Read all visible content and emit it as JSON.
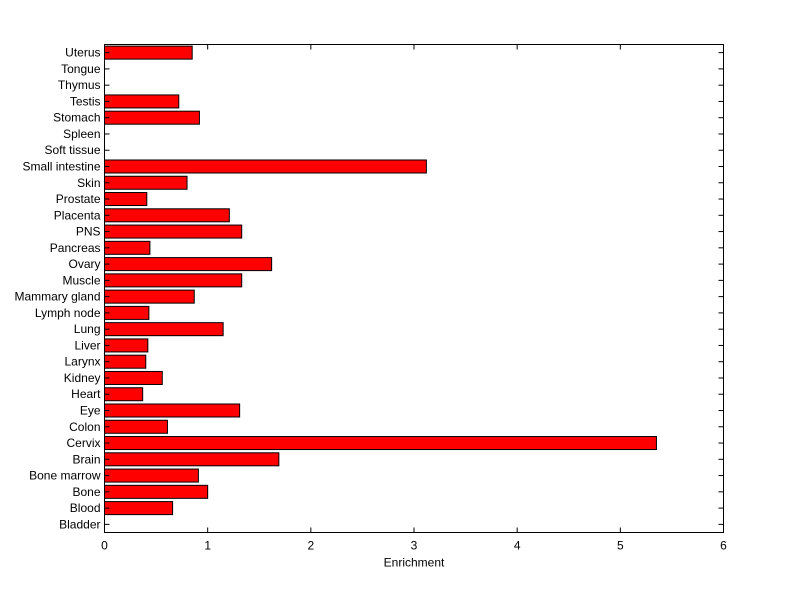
{
  "chart_data": {
    "type": "bar",
    "orientation": "horizontal",
    "categories": [
      "Uterus",
      "Tongue",
      "Thymus",
      "Testis",
      "Stomach",
      "Spleen",
      "Soft tissue",
      "Small intestine",
      "Skin",
      "Prostate",
      "Placenta",
      "PNS",
      "Pancreas",
      "Ovary",
      "Muscle",
      "Mammary gland",
      "Lymph node",
      "Lung",
      "Liver",
      "Larynx",
      "Kidney",
      "Heart",
      "Eye",
      "Colon",
      "Cervix",
      "Brain",
      "Bone marrow",
      "Bone",
      "Blood",
      "Bladder"
    ],
    "values": [
      0.85,
      0,
      0,
      0.72,
      0.92,
      0,
      0,
      3.12,
      0.8,
      0.41,
      1.21,
      1.33,
      0.44,
      1.62,
      1.33,
      0.87,
      0.43,
      1.15,
      0.42,
      0.4,
      0.56,
      0.37,
      1.31,
      0.61,
      5.35,
      1.69,
      0.91,
      1.0,
      0.66,
      0
    ],
    "xlabel": "Enrichment",
    "ylabel": "",
    "xlim": [
      0,
      6
    ],
    "xticks": [
      "0",
      "1",
      "2",
      "3",
      "4",
      "5",
      "6"
    ],
    "bar_color": "#ff0000",
    "grid": false
  }
}
